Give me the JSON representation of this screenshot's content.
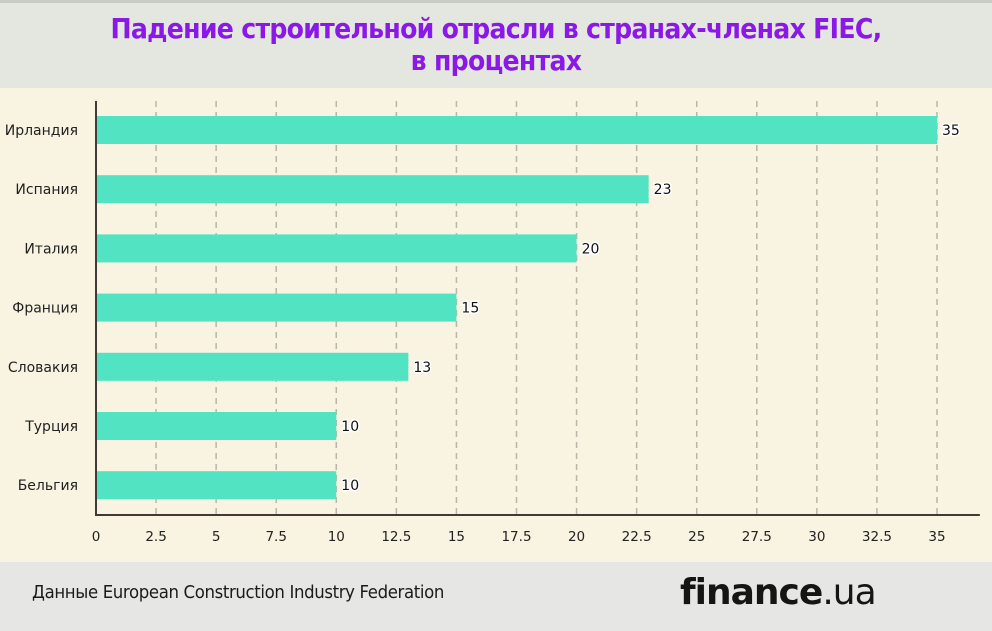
{
  "header": {
    "title_line1": "Падение строительной отрасли в странах-членах FIEC,",
    "title_line2": "в процентах"
  },
  "footer": {
    "source": "Данные European Construction Industry Federation",
    "logo_brand": "finance",
    "logo_tld": ".ua"
  },
  "colors": {
    "bar": "#52e3c3",
    "title": "#8a18e6",
    "background": "#f8f4e1"
  },
  "chart_data": {
    "type": "bar",
    "orientation": "horizontal",
    "title": "Падение строительной отрасли в странах-членах FIEC, в процентах",
    "xlabel": "",
    "ylabel": "",
    "categories": [
      "Ирландия",
      "Испания",
      "Италия",
      "Франция",
      "Словакия",
      "Турция",
      "Бельгия"
    ],
    "values": [
      35,
      23,
      20,
      15,
      13,
      10,
      10
    ],
    "data_labels": [
      "35",
      "23",
      "20",
      "15",
      "13",
      "10",
      "10"
    ],
    "xlim": [
      0,
      36.7
    ],
    "x_ticks": [
      0,
      2.5,
      5,
      7.5,
      10,
      12.5,
      15,
      17.5,
      20,
      22.5,
      25,
      27.5,
      30,
      32.5,
      35
    ],
    "x_tick_labels": [
      "0",
      "2.5",
      "5",
      "7.5",
      "10",
      "12.5",
      "15",
      "17.5",
      "20",
      "22.5",
      "25",
      "27.5",
      "30",
      "32.5",
      "35"
    ],
    "grid": "vertical dashed",
    "legend": "none"
  }
}
